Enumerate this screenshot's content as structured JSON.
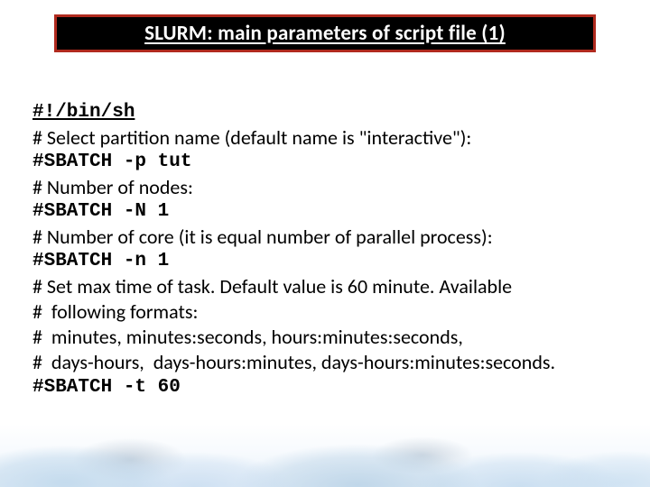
{
  "title": {
    "text": "SLURM: main parameters of script file (1)",
    "bg_color": "#000000",
    "border_color": "#b02a1e",
    "text_color": "#ffffff",
    "font_size": 23
  },
  "content": {
    "text_color": "#000000",
    "body_font_size": 22,
    "mono_font_size": 21,
    "lines": [
      {
        "kind": "mono-shebang",
        "text": "#!/bin/sh"
      },
      {
        "kind": "comment",
        "text": "# Select partition name (default name is \"interactive\"):"
      },
      {
        "kind": "mono-bold",
        "text": "#SBATCH -p tut"
      },
      {
        "kind": "comment",
        "text": "# Number of nodes:"
      },
      {
        "kind": "mono-bold",
        "text": "#SBATCH -N 1"
      },
      {
        "kind": "comment",
        "text": "# Number of core (it is equal number of parallel process):"
      },
      {
        "kind": "mono-bold",
        "text": "#SBATCH -n 1"
      },
      {
        "kind": "comment",
        "text": "# Set max time of task. Default value is 60 minute. Available"
      },
      {
        "kind": "comment",
        "text": "#  following formats:"
      },
      {
        "kind": "comment",
        "text": "#  minutes, minutes:seconds, hours:minutes:seconds,"
      },
      {
        "kind": "comment",
        "text": "#  days-hours,  days-hours:minutes, days-hours:minutes:seconds."
      },
      {
        "kind": "mono-bold",
        "text": "#SBATCH -t 60"
      }
    ]
  },
  "background": {
    "page_color": "#ffffff",
    "cloud_tint": "#c3d8ea"
  }
}
